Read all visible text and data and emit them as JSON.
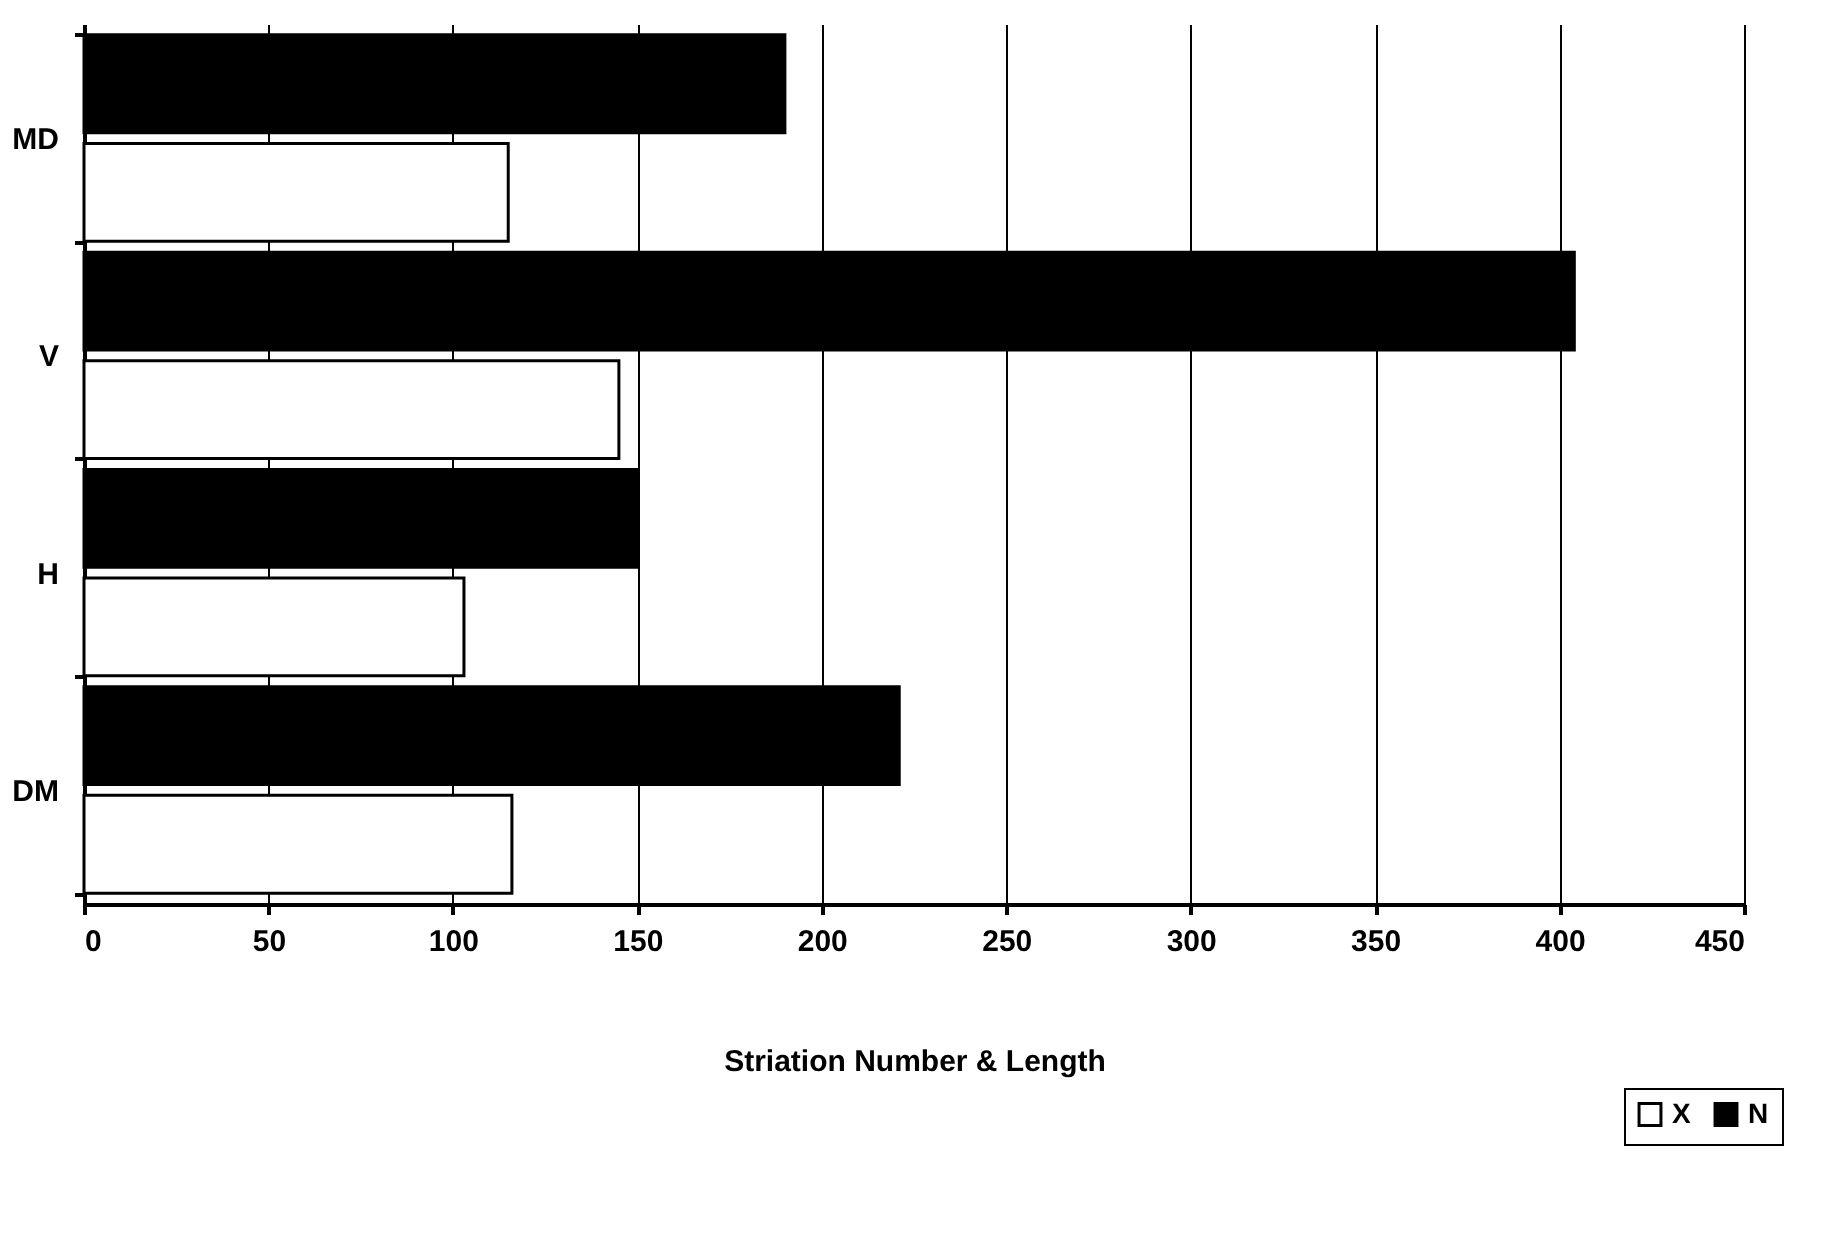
{
  "chart_data": {
    "type": "bar",
    "orientation": "horizontal",
    "xlabel": "Striation Number & Length",
    "categories": [
      "MD",
      "V",
      "H",
      "DM"
    ],
    "series": [
      {
        "name": "X",
        "color": "#ffffff",
        "values": [
          115,
          145,
          103,
          116
        ]
      },
      {
        "name": "N",
        "color": "#000000",
        "values": [
          190,
          404,
          150,
          221
        ]
      }
    ],
    "xlim": [
      0,
      450
    ],
    "xticks": [
      0,
      50,
      100,
      150,
      200,
      250,
      300,
      350,
      400,
      450
    ],
    "grid": "x",
    "legend": "bottom right"
  }
}
